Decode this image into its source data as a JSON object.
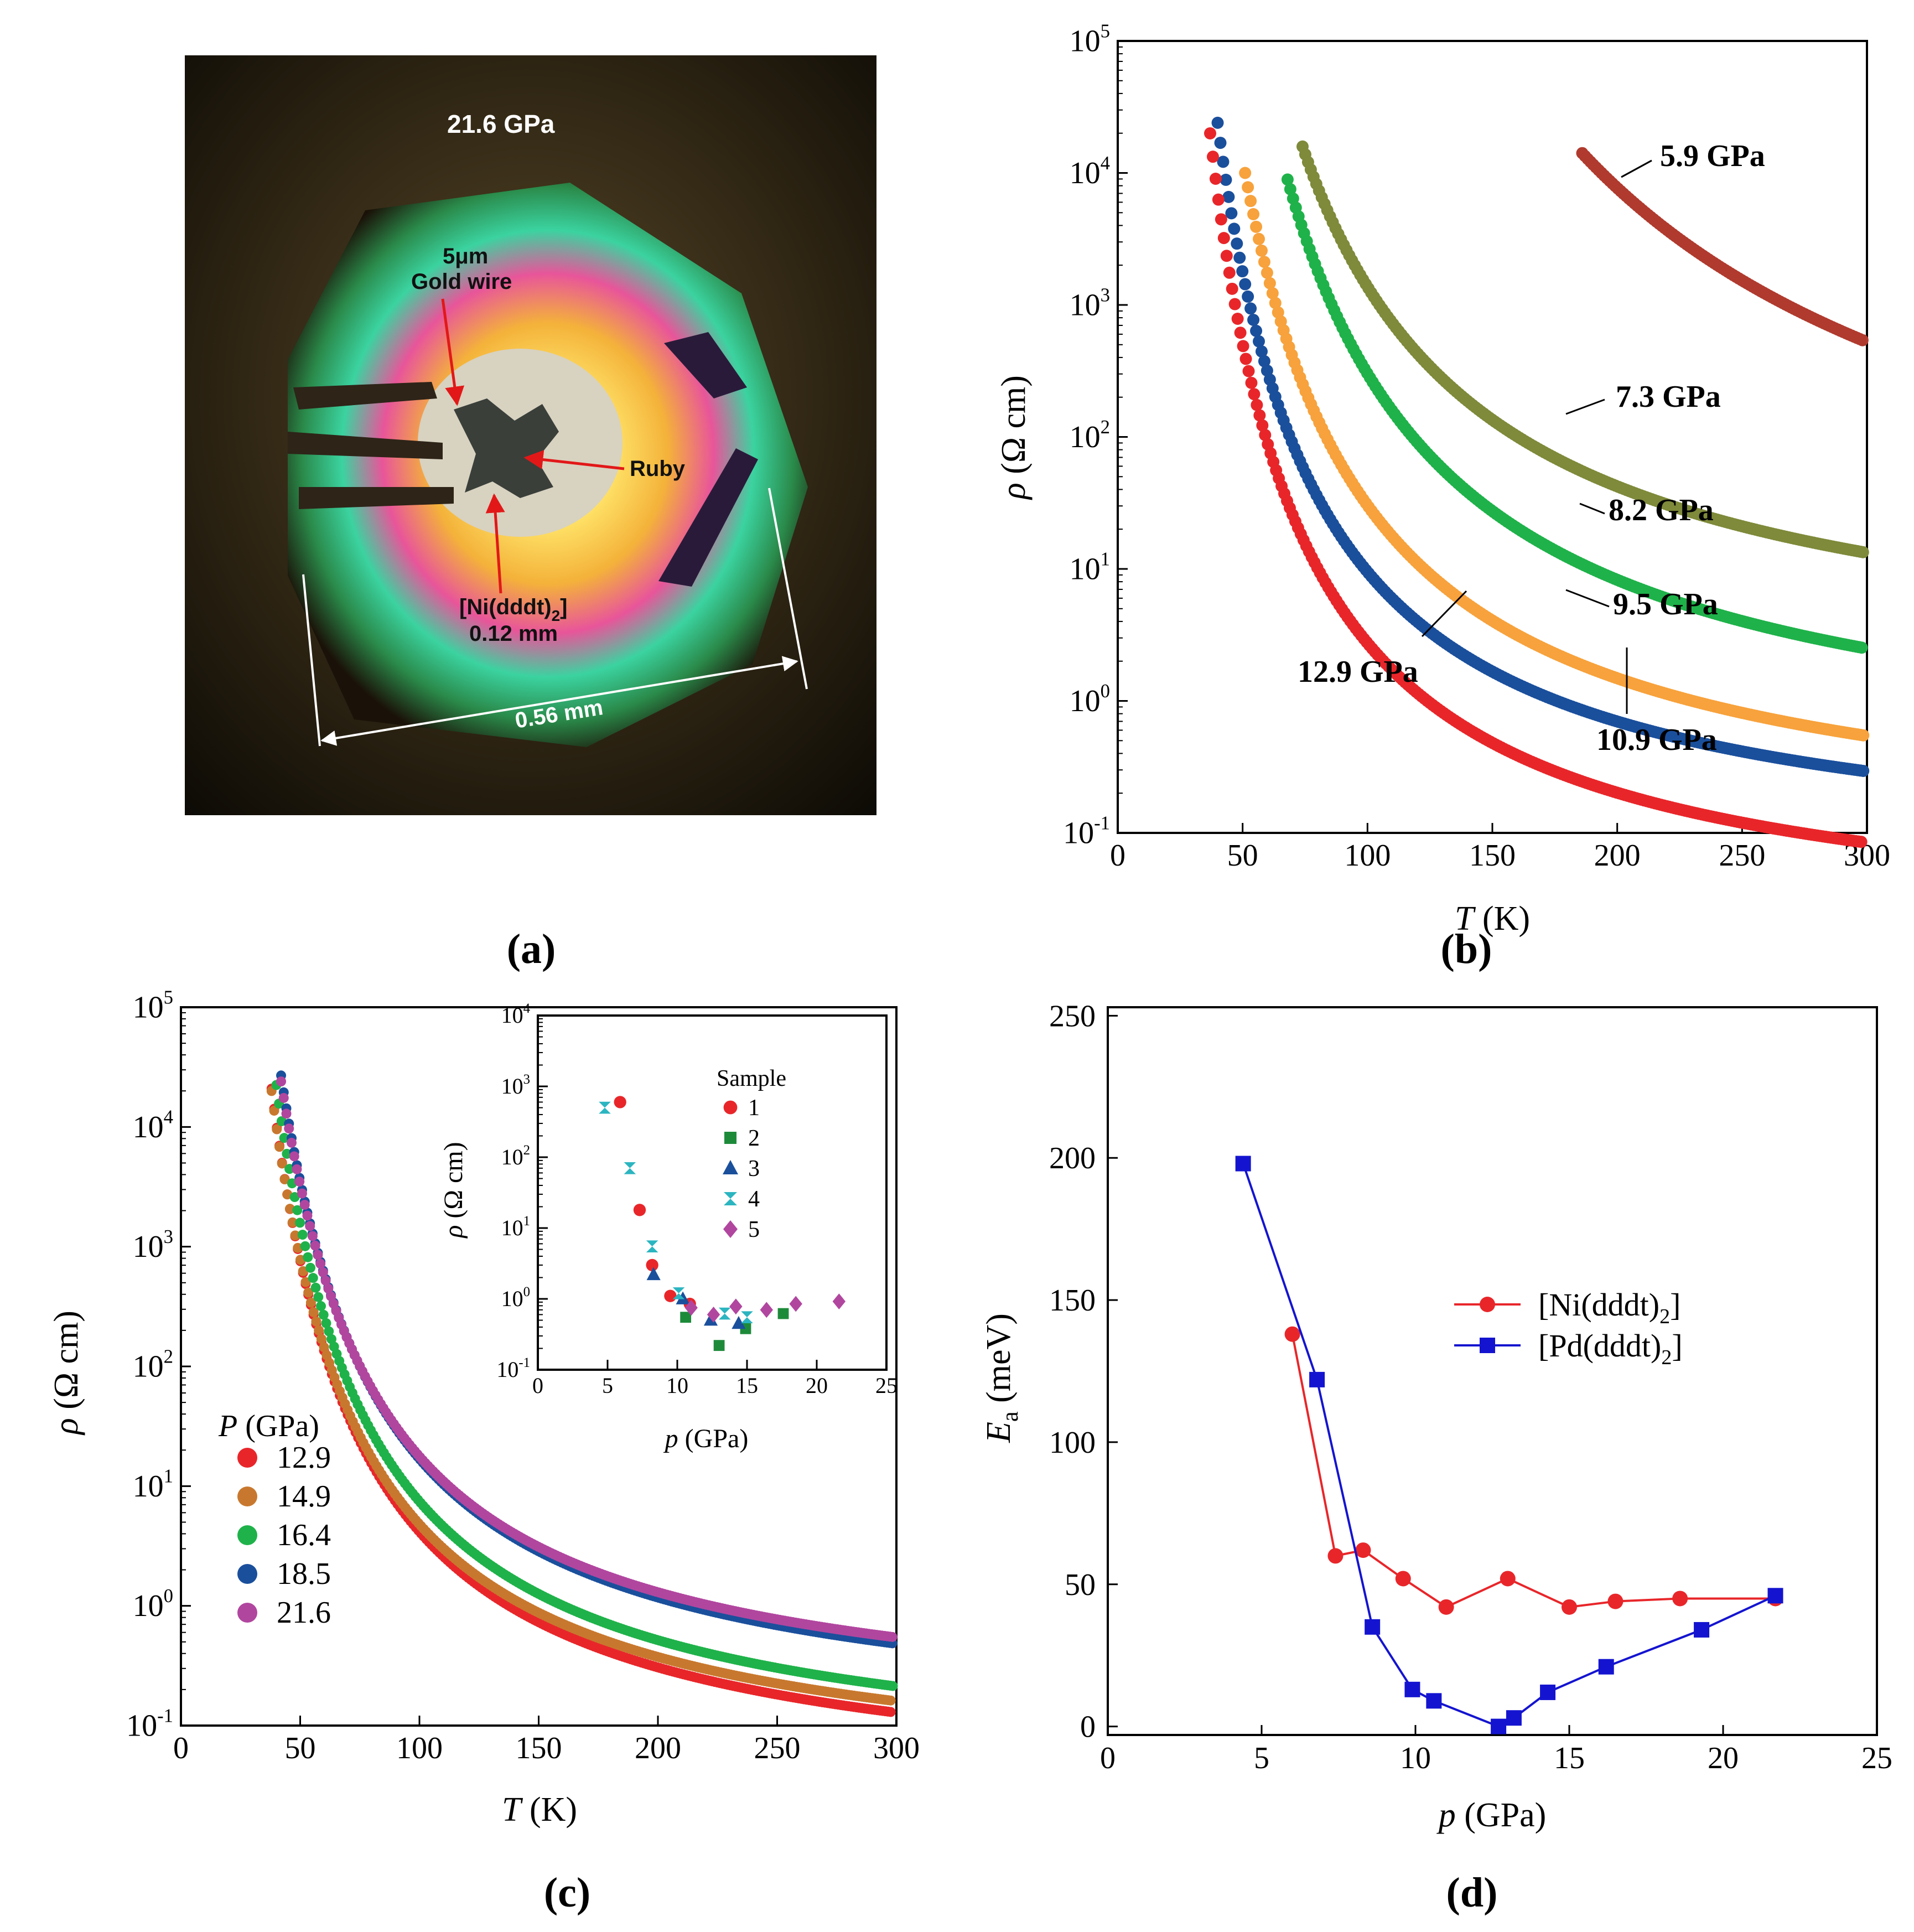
{
  "colors": {
    "red": "#e8262a",
    "orange": "#f7a23c",
    "green": "#1fb24a",
    "olive": "#7f8a3a",
    "brown": "#b03a2e",
    "navy": "#1a4f9c",
    "purple": "#b1469f",
    "copper": "#c8782e",
    "cyan": "#2bb5c0",
    "dgreen": "#1d8a3a",
    "blue": "#1414d0"
  },
  "panel_a": {
    "label": "(a)",
    "pressure": "21.6 GPa",
    "wire_line1": "5μm",
    "wire_line2": "Gold wire",
    "ruby": "Ruby",
    "sample_line1": "[Ni(dddt)",
    "sample_sub": "2",
    "sample_line1_end": "]",
    "sample_line2": "0.12 mm",
    "scale": "0.56 mm"
  },
  "chart_data": [
    {
      "id": "b",
      "panel_label": "(b)",
      "type": "scatter",
      "xlabel_italic": "T",
      "xlabel_rest": " (K)",
      "ylabel_italic": "ρ",
      "ylabel_rest": " (Ω cm)",
      "xlim": [
        0,
        300
      ],
      "ylim_log10": [
        -1,
        5
      ],
      "xticks": [
        0,
        50,
        100,
        150,
        200,
        250,
        300
      ],
      "yticks_exp": [
        -1,
        0,
        1,
        2,
        3,
        4,
        5
      ],
      "series": [
        {
          "name": "5.9 GPa",
          "color_key": "brown",
          "tmin": 186,
          "log_rho_at_tmin": 4.15,
          "ea_meV": 139
        },
        {
          "name": "7.3 GPa",
          "color_key": "olive",
          "tmin": 74,
          "log_rho_at_tmin": 4.2,
          "ea_meV": 60
        },
        {
          "name": "8.2 GPa",
          "color_key": "green",
          "tmin": 68,
          "log_rho_at_tmin": 3.95,
          "ea_meV": 62
        },
        {
          "name": "9.5 GPa",
          "color_key": "orange",
          "tmin": 51,
          "log_rho_at_tmin": 4.0,
          "ea_meV": 52
        },
        {
          "name": "10.9 GPa",
          "color_key": "navy",
          "tmin": 40,
          "log_rho_at_tmin": 4.38,
          "ea_meV": 45
        },
        {
          "name": "12.9 GPa",
          "color_key": "red",
          "tmin": 37,
          "log_rho_at_tmin": 4.3,
          "ea_meV": 45
        }
      ],
      "annotations": [
        "5.9 GPa",
        "7.3 GPa",
        "8.2 GPa",
        "9.5 GPa",
        "12.9 GPa",
        "10.9 GPa"
      ]
    },
    {
      "id": "c",
      "panel_label": "(c)",
      "type": "scatter",
      "xlabel_italic": "T",
      "xlabel_rest": " (K)",
      "ylabel_italic": "ρ",
      "ylabel_rest": " (Ω cm)",
      "xlim": [
        0,
        300
      ],
      "ylim_log10": [
        -1,
        5
      ],
      "xticks": [
        0,
        50,
        100,
        150,
        200,
        250,
        300
      ],
      "yticks_exp": [
        -1,
        0,
        1,
        2,
        3,
        4,
        5
      ],
      "legend_title_italic": "P",
      "legend_title_rest": " (GPa)",
      "series": [
        {
          "name": "12.9",
          "color_key": "red",
          "tmin": 38,
          "log_rho_at_tmin": 4.32,
          "ea_meV": 45
        },
        {
          "name": "14.9",
          "color_key": "copper",
          "tmin": 38,
          "log_rho_at_tmin": 4.3,
          "ea_meV": 44
        },
        {
          "name": "16.4",
          "color_key": "green",
          "tmin": 40,
          "log_rho_at_tmin": 4.35,
          "ea_meV": 46
        },
        {
          "name": "18.5",
          "color_key": "navy",
          "tmin": 42,
          "log_rho_at_tmin": 4.43,
          "ea_meV": 46
        },
        {
          "name": "21.6",
          "color_key": "purple",
          "tmin": 42,
          "log_rho_at_tmin": 4.38,
          "ea_meV": 45
        }
      ]
    },
    {
      "id": "c_inset",
      "type": "scatter",
      "xlabel_italic": "p",
      "xlabel_rest": " (GPa)",
      "ylabel_italic": "ρ",
      "ylabel_rest": " (Ω cm)",
      "xlim": [
        0,
        25
      ],
      "ylim_log10": [
        -1,
        4
      ],
      "xticks": [
        0,
        5,
        10,
        15,
        20,
        25
      ],
      "yticks_exp": [
        -1,
        0,
        1,
        2,
        3,
        4
      ],
      "legend_title": "Sample",
      "series": [
        {
          "name": "1",
          "marker": "circle",
          "color_key": "red",
          "points": [
            [
              5.9,
              600
            ],
            [
              7.3,
              18
            ],
            [
              8.2,
              3
            ],
            [
              9.5,
              1.1
            ],
            [
              10.9,
              0.85
            ]
          ]
        },
        {
          "name": "2",
          "marker": "square",
          "color_key": "dgreen",
          "points": [
            [
              10.6,
              0.55
            ],
            [
              13.0,
              0.22
            ],
            [
              14.9,
              0.38
            ],
            [
              17.6,
              0.62
            ]
          ]
        },
        {
          "name": "3",
          "marker": "triangle",
          "color_key": "navy",
          "points": [
            [
              8.3,
              2.2
            ],
            [
              10.4,
              1.0
            ],
            [
              12.4,
              0.5
            ],
            [
              14.4,
              0.45
            ]
          ]
        },
        {
          "name": "4",
          "marker": "bowtie",
          "color_key": "cyan",
          "points": [
            [
              4.8,
              500
            ],
            [
              6.6,
              70
            ],
            [
              8.2,
              5.5
            ],
            [
              10.1,
              1.2
            ],
            [
              13.4,
              0.62
            ],
            [
              15.0,
              0.55
            ]
          ]
        },
        {
          "name": "5",
          "marker": "diamond",
          "color_key": "purple",
          "points": [
            [
              11.0,
              0.75
            ],
            [
              12.6,
              0.6
            ],
            [
              14.2,
              0.78
            ],
            [
              16.4,
              0.7
            ],
            [
              18.5,
              0.85
            ],
            [
              21.6,
              0.92
            ]
          ]
        }
      ]
    },
    {
      "id": "d",
      "panel_label": "(d)",
      "type": "line",
      "xlabel_italic": "p",
      "xlabel_rest": " (GPa)",
      "ylabel_italic": "E",
      "ylabel_sub": "a",
      "ylabel_rest": " (meV)",
      "xlim": [
        0,
        25
      ],
      "ylim": [
        -3,
        253
      ],
      "xticks": [
        0,
        5,
        10,
        15,
        20,
        25
      ],
      "yticks": [
        0,
        50,
        100,
        150,
        200,
        250
      ],
      "series": [
        {
          "name_pre": "[Ni(dddt)",
          "name_sub": "2",
          "name_post": "]",
          "marker": "circle",
          "color_key": "red",
          "x": [
            6.0,
            7.4,
            8.3,
            9.6,
            11.0,
            13.0,
            15.0,
            16.5,
            18.6,
            21.7
          ],
          "y": [
            138,
            60,
            62,
            52,
            42,
            52,
            42,
            44,
            45,
            45
          ]
        },
        {
          "name_pre": "[Pd(dddt)",
          "name_sub": "2",
          "name_post": "]",
          "marker": "square",
          "color_key": "blue",
          "x": [
            4.4,
            6.8,
            8.6,
            9.9,
            10.6,
            12.7,
            13.2,
            14.3,
            16.2,
            19.3,
            21.7
          ],
          "y": [
            198,
            122,
            35,
            13,
            9,
            0,
            3,
            12,
            21,
            34,
            46
          ]
        }
      ]
    }
  ]
}
